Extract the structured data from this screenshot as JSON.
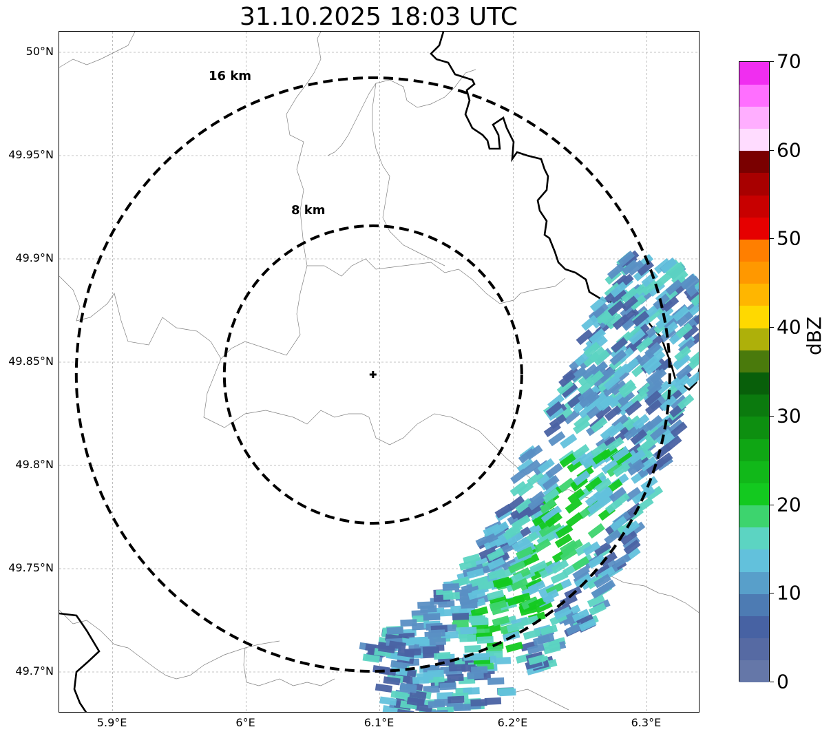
{
  "title": "31.10.2025 18:03 UTC",
  "map": {
    "lon_range": [
      5.86,
      6.34
    ],
    "lat_range": [
      49.68,
      50.01
    ],
    "lat_ticks": [
      {
        "value": 50.0,
        "label": "50°N"
      },
      {
        "value": 49.95,
        "label": "49.95°N"
      },
      {
        "value": 49.9,
        "label": "49.9°N"
      },
      {
        "value": 49.85,
        "label": "49.85°N"
      },
      {
        "value": 49.8,
        "label": "49.8°N"
      },
      {
        "value": 49.75,
        "label": "49.75°N"
      },
      {
        "value": 49.7,
        "label": "49.7°N"
      }
    ],
    "lon_ticks": [
      {
        "value": 5.9,
        "label": "5.9°E"
      },
      {
        "value": 6.0,
        "label": "6°E"
      },
      {
        "value": 6.1,
        "label": "6.1°E"
      },
      {
        "value": 6.2,
        "label": "6.2°E"
      },
      {
        "value": 6.3,
        "label": "6.3°E"
      }
    ],
    "radar_center": {
      "lon": 6.095,
      "lat": 49.844
    },
    "ring_labels": {
      "inner": "8 km",
      "outer": "16 km"
    },
    "gridlines": true
  },
  "colorbar": {
    "label": "dBZ",
    "min": 0,
    "max": 70,
    "step": 2.5,
    "tick_labels": [
      "0",
      "10",
      "20",
      "30",
      "40",
      "50",
      "60",
      "70"
    ],
    "colors": [
      "#6577a8",
      "#566aa3",
      "#4762a3",
      "#4d7bb3",
      "#589fca",
      "#62c1dc",
      "#5cd4c2",
      "#3dd46e",
      "#13c91f",
      "#11b819",
      "#0fa614",
      "#0d8f10",
      "#0b7a0e",
      "#085f0a",
      "#4a7a0c",
      "#aeb00a",
      "#ffd900",
      "#ffb600",
      "#ff9800",
      "#ff7f00",
      "#e60000",
      "#c80000",
      "#a80000",
      "#7a0000",
      "#ffdcff",
      "#ffaeff",
      "#ff6fff",
      "#f02ef0"
    ]
  },
  "echo_band_colors": [
    "#4a62a3",
    "#5a8fc4",
    "#62c1dc",
    "#5cd4c2",
    "#3dd46e",
    "#13c91f"
  ]
}
